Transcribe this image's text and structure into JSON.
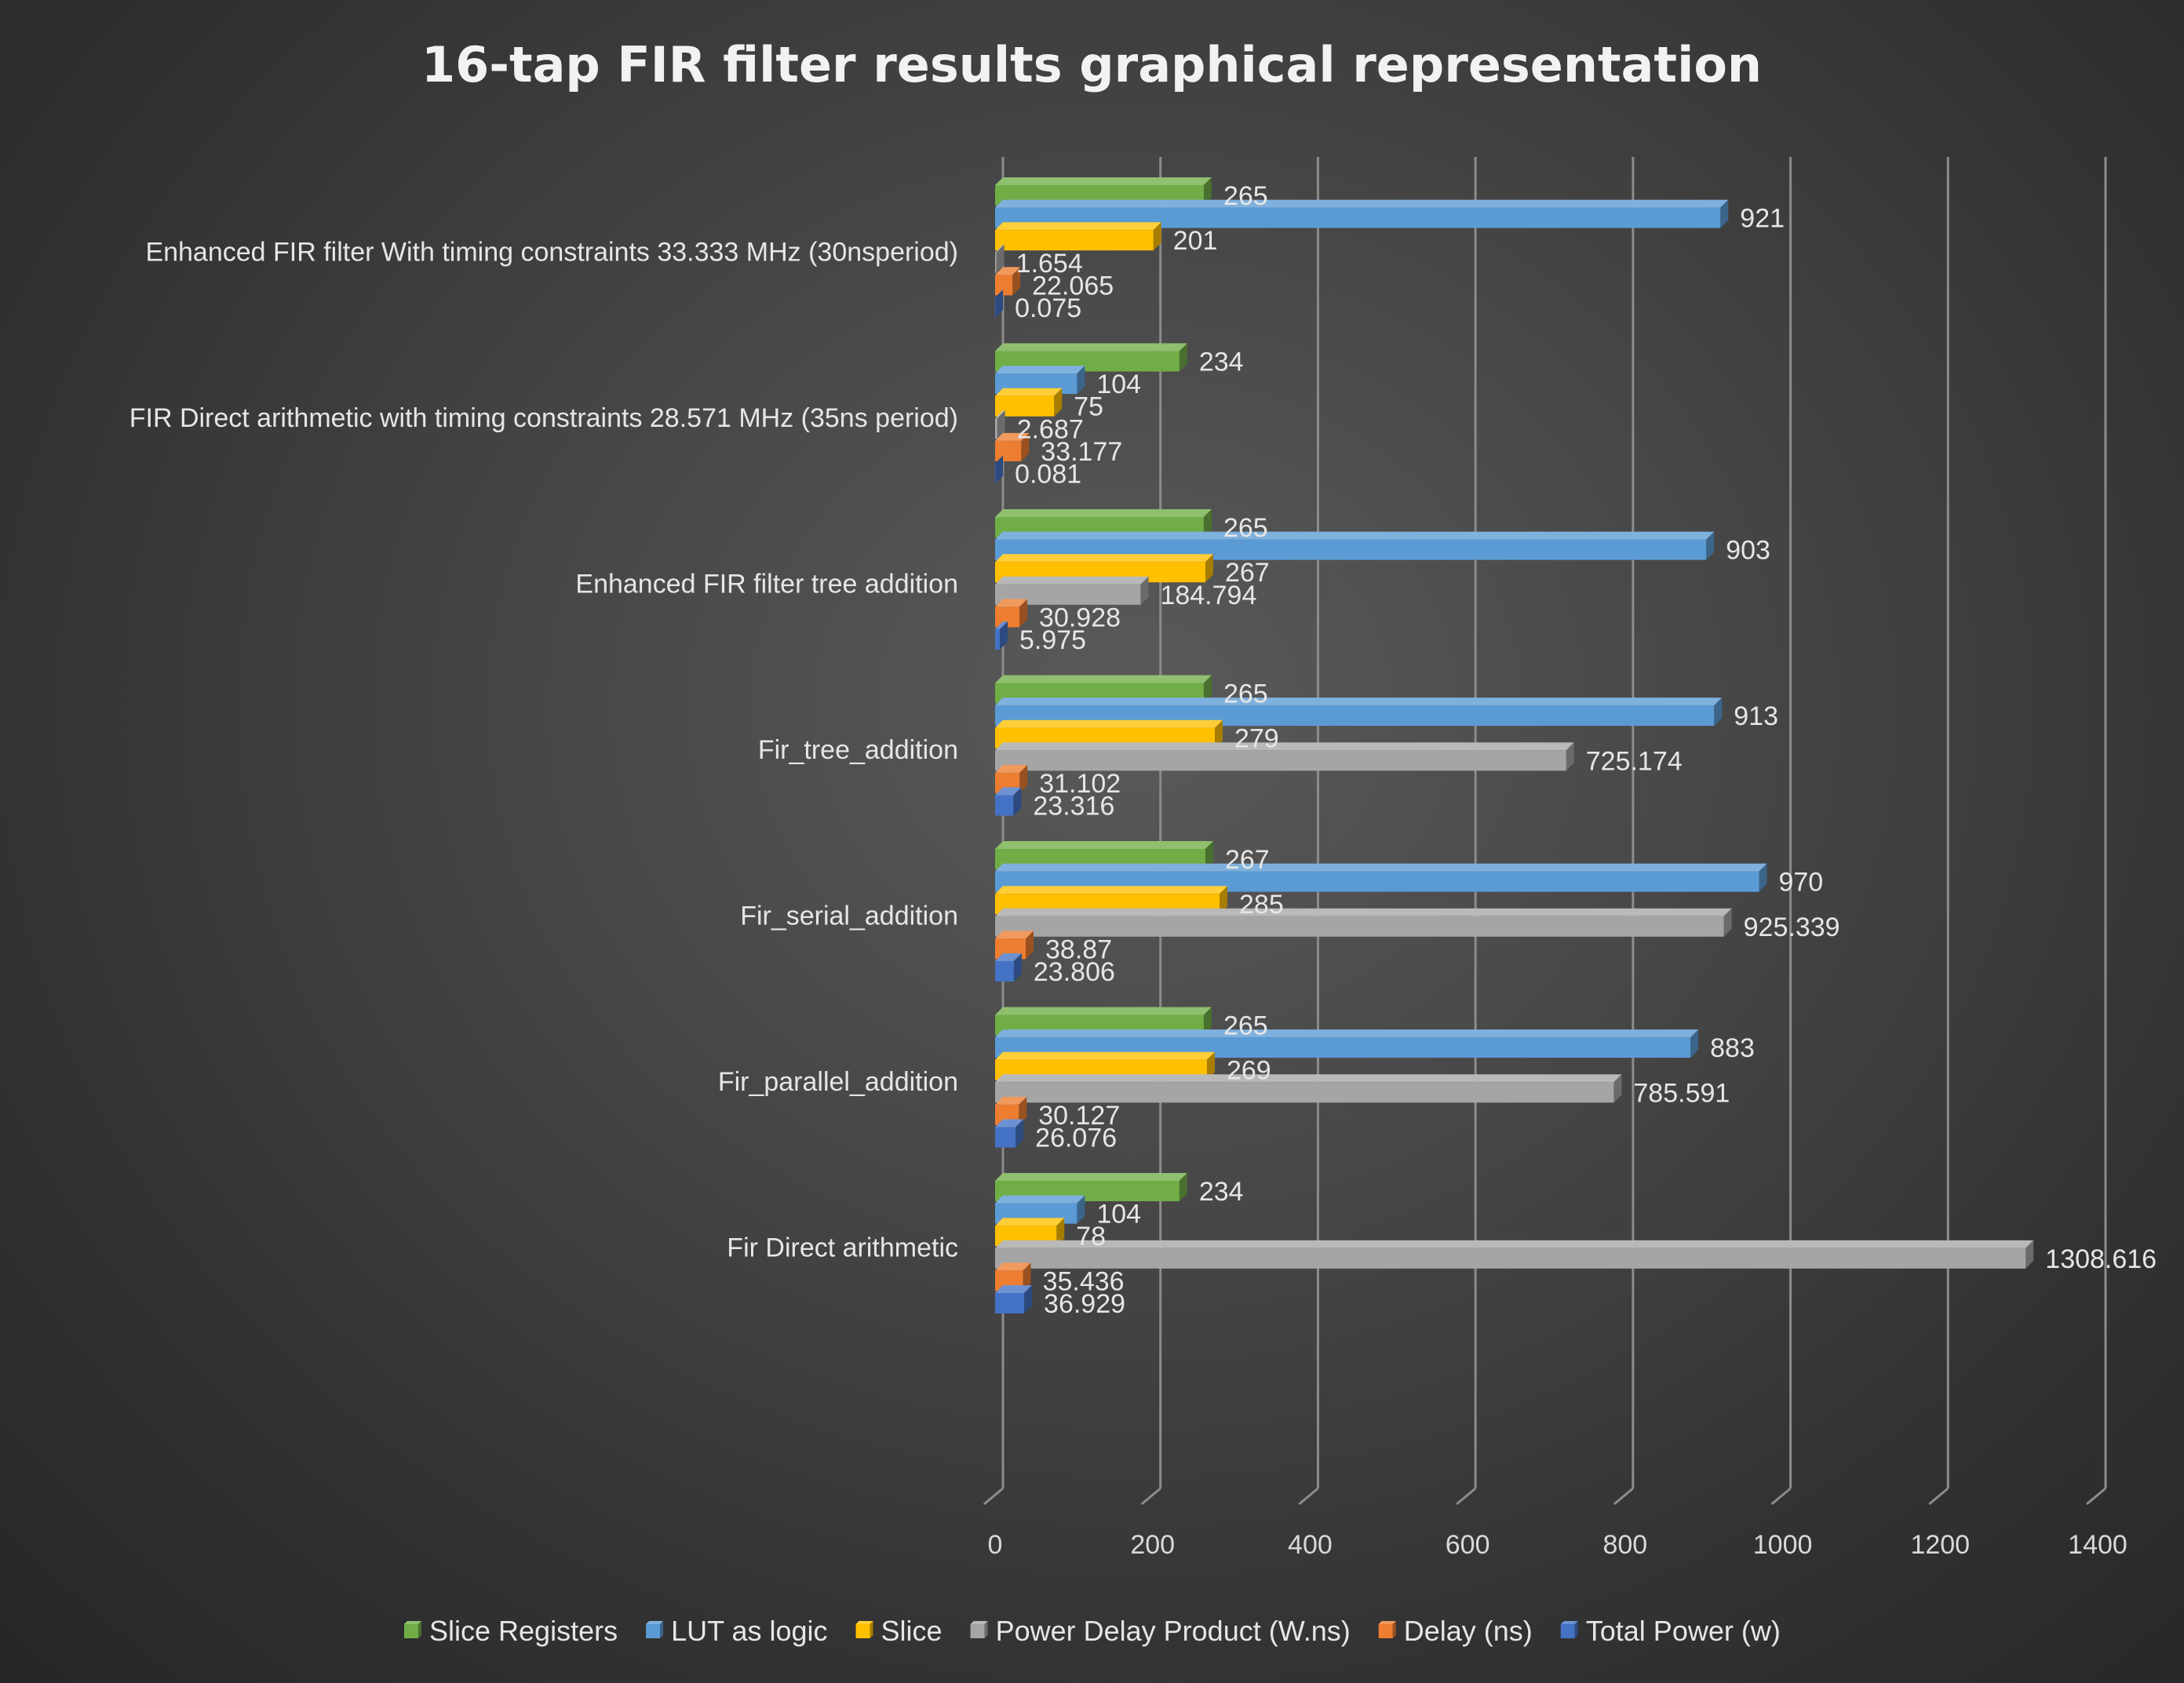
{
  "chart_data": {
    "type": "bar",
    "orientation": "horizontal",
    "title": "16-tap FIR filter results graphical representation",
    "categories": [
      "Enhanced FIR filter With timing constraints 33.333 MHz (30nsperiod)",
      "FIR Direct arithmetic with timing constraints 28.571 MHz (35ns period)",
      "Enhanced FIR filter tree addition",
      "Fir_tree_addition",
      "Fir_serial_addition",
      "Fir_parallel_addition",
      "Fir Direct arithmetic"
    ],
    "series": [
      {
        "name": "Slice Registers",
        "color": "#70ad47",
        "values": [
          265,
          234,
          265,
          265,
          267,
          265,
          234
        ]
      },
      {
        "name": "LUT as logic",
        "color": "#5b9bd5",
        "values": [
          921,
          104,
          903,
          913,
          970,
          883,
          104
        ]
      },
      {
        "name": "Slice",
        "color": "#ffc000",
        "values": [
          201,
          75,
          267,
          279,
          285,
          269,
          78
        ]
      },
      {
        "name": "Power Delay Product (W.ns)",
        "color": "#a5a5a5",
        "values": [
          1.654,
          2.687,
          184.794,
          725.174,
          925.339,
          785.591,
          1308.616
        ]
      },
      {
        "name": "Delay (ns)",
        "color": "#ed7d31",
        "values": [
          22.065,
          33.177,
          30.928,
          31.102,
          38.87,
          30.127,
          35.436
        ]
      },
      {
        "name": "Total Power (w)",
        "color": "#4472c4",
        "values": [
          0.075,
          0.081,
          5.975,
          23.316,
          23.806,
          26.076,
          36.929
        ]
      }
    ],
    "value_labels": [
      [
        "265",
        "921",
        "201",
        "1.654",
        "22.065",
        "0.075"
      ],
      [
        "234",
        "104",
        "75",
        "2.687",
        "33.177",
        "0.081"
      ],
      [
        "265",
        "903",
        "267",
        "184.794",
        "30.928",
        "5.975"
      ],
      [
        "265",
        "913",
        "279",
        "725.174",
        "31.102",
        "23.316"
      ],
      [
        "267",
        "970",
        "285",
        "925.339",
        "38.87",
        "23.806"
      ],
      [
        "265",
        "883",
        "269",
        "785.591",
        "30.127",
        "26.076"
      ],
      [
        "234",
        "104",
        "78",
        "1308.616",
        "35.436",
        "36.929"
      ]
    ],
    "xlim": [
      0,
      1400
    ],
    "ticks": [
      0,
      200,
      400,
      600,
      800,
      1000,
      1200,
      1400
    ],
    "tick_labels": [
      "0",
      "200",
      "400",
      "600",
      "800",
      "1000",
      "1200",
      "1400"
    ],
    "grid": "vertical",
    "legend_position": "bottom",
    "style": "3d-bar"
  }
}
